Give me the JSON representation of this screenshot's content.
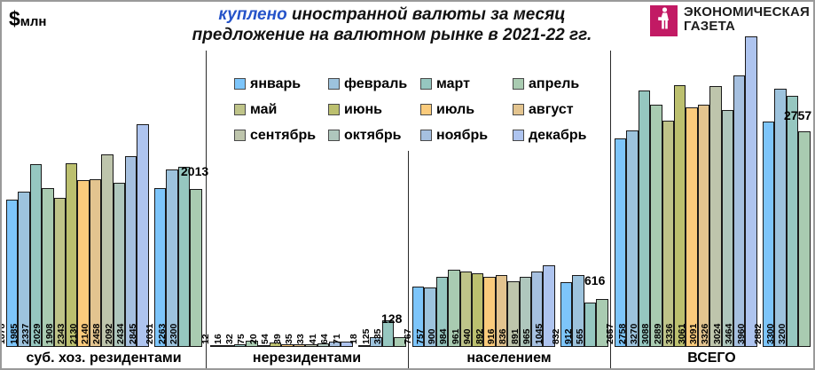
{
  "units": {
    "symbol": "$",
    "text": "млн"
  },
  "title": {
    "highlight": "куплено",
    "highlight_color": "#2553c9",
    "line1_rest": " иностранной валюты за месяц",
    "line2": "предложение на валютном рынке в 2021-22 гг."
  },
  "logo": {
    "line1": "ЭКОНОМИЧЕСКАЯ",
    "line2": "ГАЗЕТА",
    "square_color": "#c21a64"
  },
  "chart_data": {
    "type": "bar",
    "unit": "$млн",
    "legend_position": "top-center",
    "grid": false,
    "months": [
      "январь",
      "февраль",
      "март",
      "апрель",
      "май",
      "июнь",
      "июль",
      "август",
      "сентябрь",
      "октябрь",
      "ноябрь",
      "декабрь"
    ],
    "month_colors": [
      "#7dc5fa",
      "#9dc3dd",
      "#96c7c0",
      "#a9cbb1",
      "#bfc489",
      "#bcc06f",
      "#facb7c",
      "#e3c48f",
      "#bec5ac",
      "#afc7bd",
      "#a6c0e0",
      "#aec4ef"
    ],
    "years": [
      "2021",
      "2022"
    ],
    "groups": [
      {
        "label": "суб. хоз. резидентами",
        "values_2021": [
          1878,
          1985,
          2337,
          2029,
          1908,
          2343,
          2130,
          2140,
          2458,
          2092,
          2434,
          2845
        ],
        "values_2022": [
          2031,
          2263,
          2300,
          2013
        ],
        "annotation_apr_2022": "2013"
      },
      {
        "label": "нерезидентами",
        "values_2021": [
          12,
          16,
          32,
          75,
          20,
          54,
          39,
          35,
          33,
          41,
          64,
          71
        ],
        "values_2022": [
          18,
          125,
          335,
          128
        ],
        "annotation_apr_2022": "128"
      },
      {
        "label": "населением",
        "values_2021": [
          767,
          757,
          900,
          984,
          961,
          940,
          892,
          916,
          836,
          891,
          965,
          1045
        ],
        "values_2022": [
          832,
          912,
          565,
          616
        ],
        "annotation_apr_2022": "616"
      },
      {
        "label": "ВСЕГО",
        "values_2021": [
          2657,
          2758,
          3270,
          3088,
          2889,
          3336,
          3061,
          3091,
          3326,
          3024,
          3464,
          3960
        ],
        "values_2022": [
          2882,
          3300,
          3200,
          2757
        ],
        "annotation_apr_2022": "2757"
      }
    ]
  }
}
